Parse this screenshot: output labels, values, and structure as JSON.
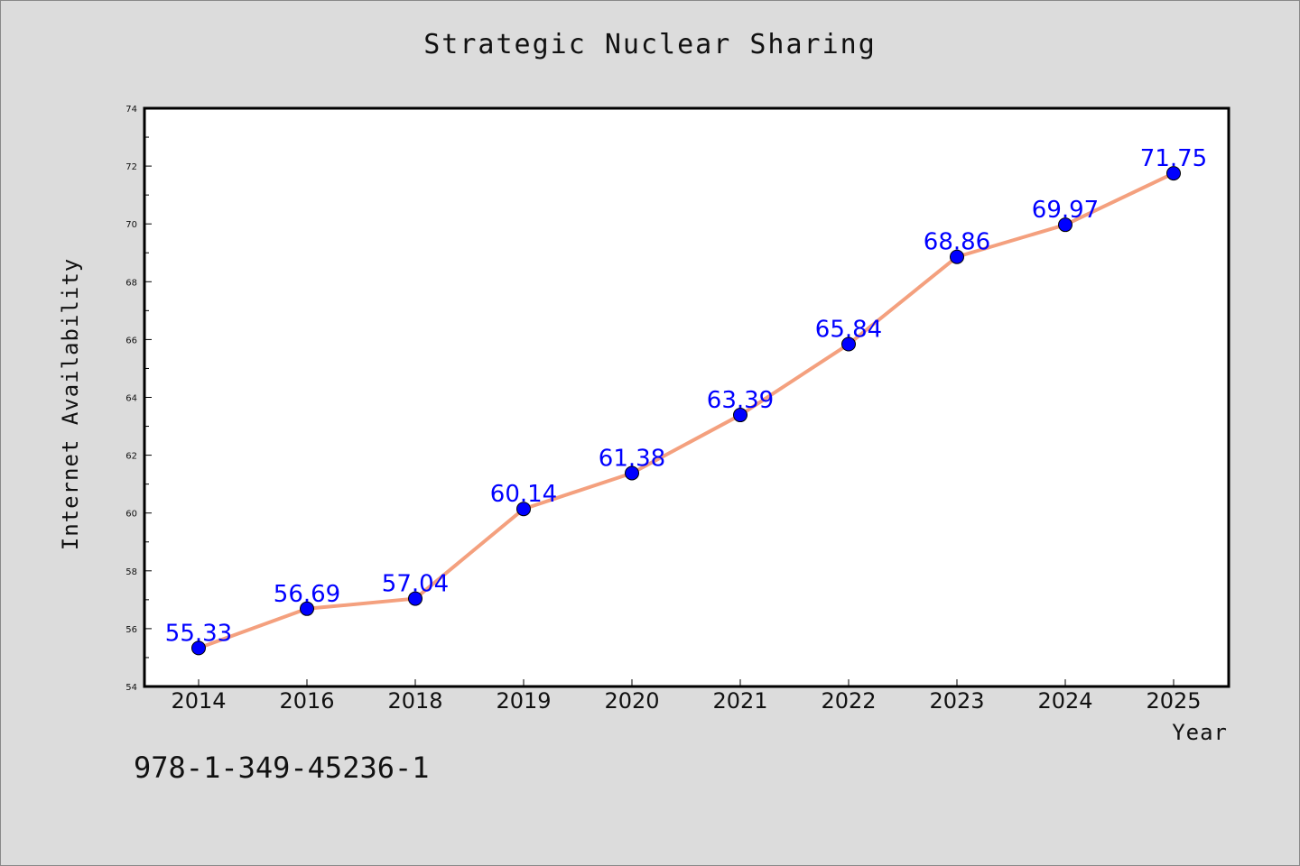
{
  "page": {
    "title": "Strategic Nuclear Sharing",
    "footnote": "978-1-349-45236-1"
  },
  "colors": {
    "background": "#dcdcdc",
    "plot_background": "#ffffff",
    "line": "#f4a07e",
    "marker": "#0000ff",
    "label": "#0000ff"
  },
  "chart_data": {
    "type": "line",
    "title": "Strategic Nuclear Sharing",
    "xlabel": "Year",
    "ylabel": "Internet Availability",
    "categories": [
      "2014",
      "2016",
      "2018",
      "2019",
      "2020",
      "2021",
      "2022",
      "2023",
      "2024",
      "2025"
    ],
    "values": [
      55.33,
      56.69,
      57.04,
      60.14,
      61.38,
      63.39,
      65.84,
      68.86,
      69.97,
      71.75
    ],
    "data_labels": [
      "55.33",
      "56.69",
      "57.04",
      "60.14",
      "61.38",
      "63.39",
      "65.84",
      "68.86",
      "69.97",
      "71.75"
    ],
    "ylim": [
      54,
      74
    ],
    "yticks": [
      54,
      56,
      58,
      60,
      62,
      64,
      66,
      68,
      70,
      72,
      74
    ],
    "grid": false,
    "legend": "none"
  }
}
